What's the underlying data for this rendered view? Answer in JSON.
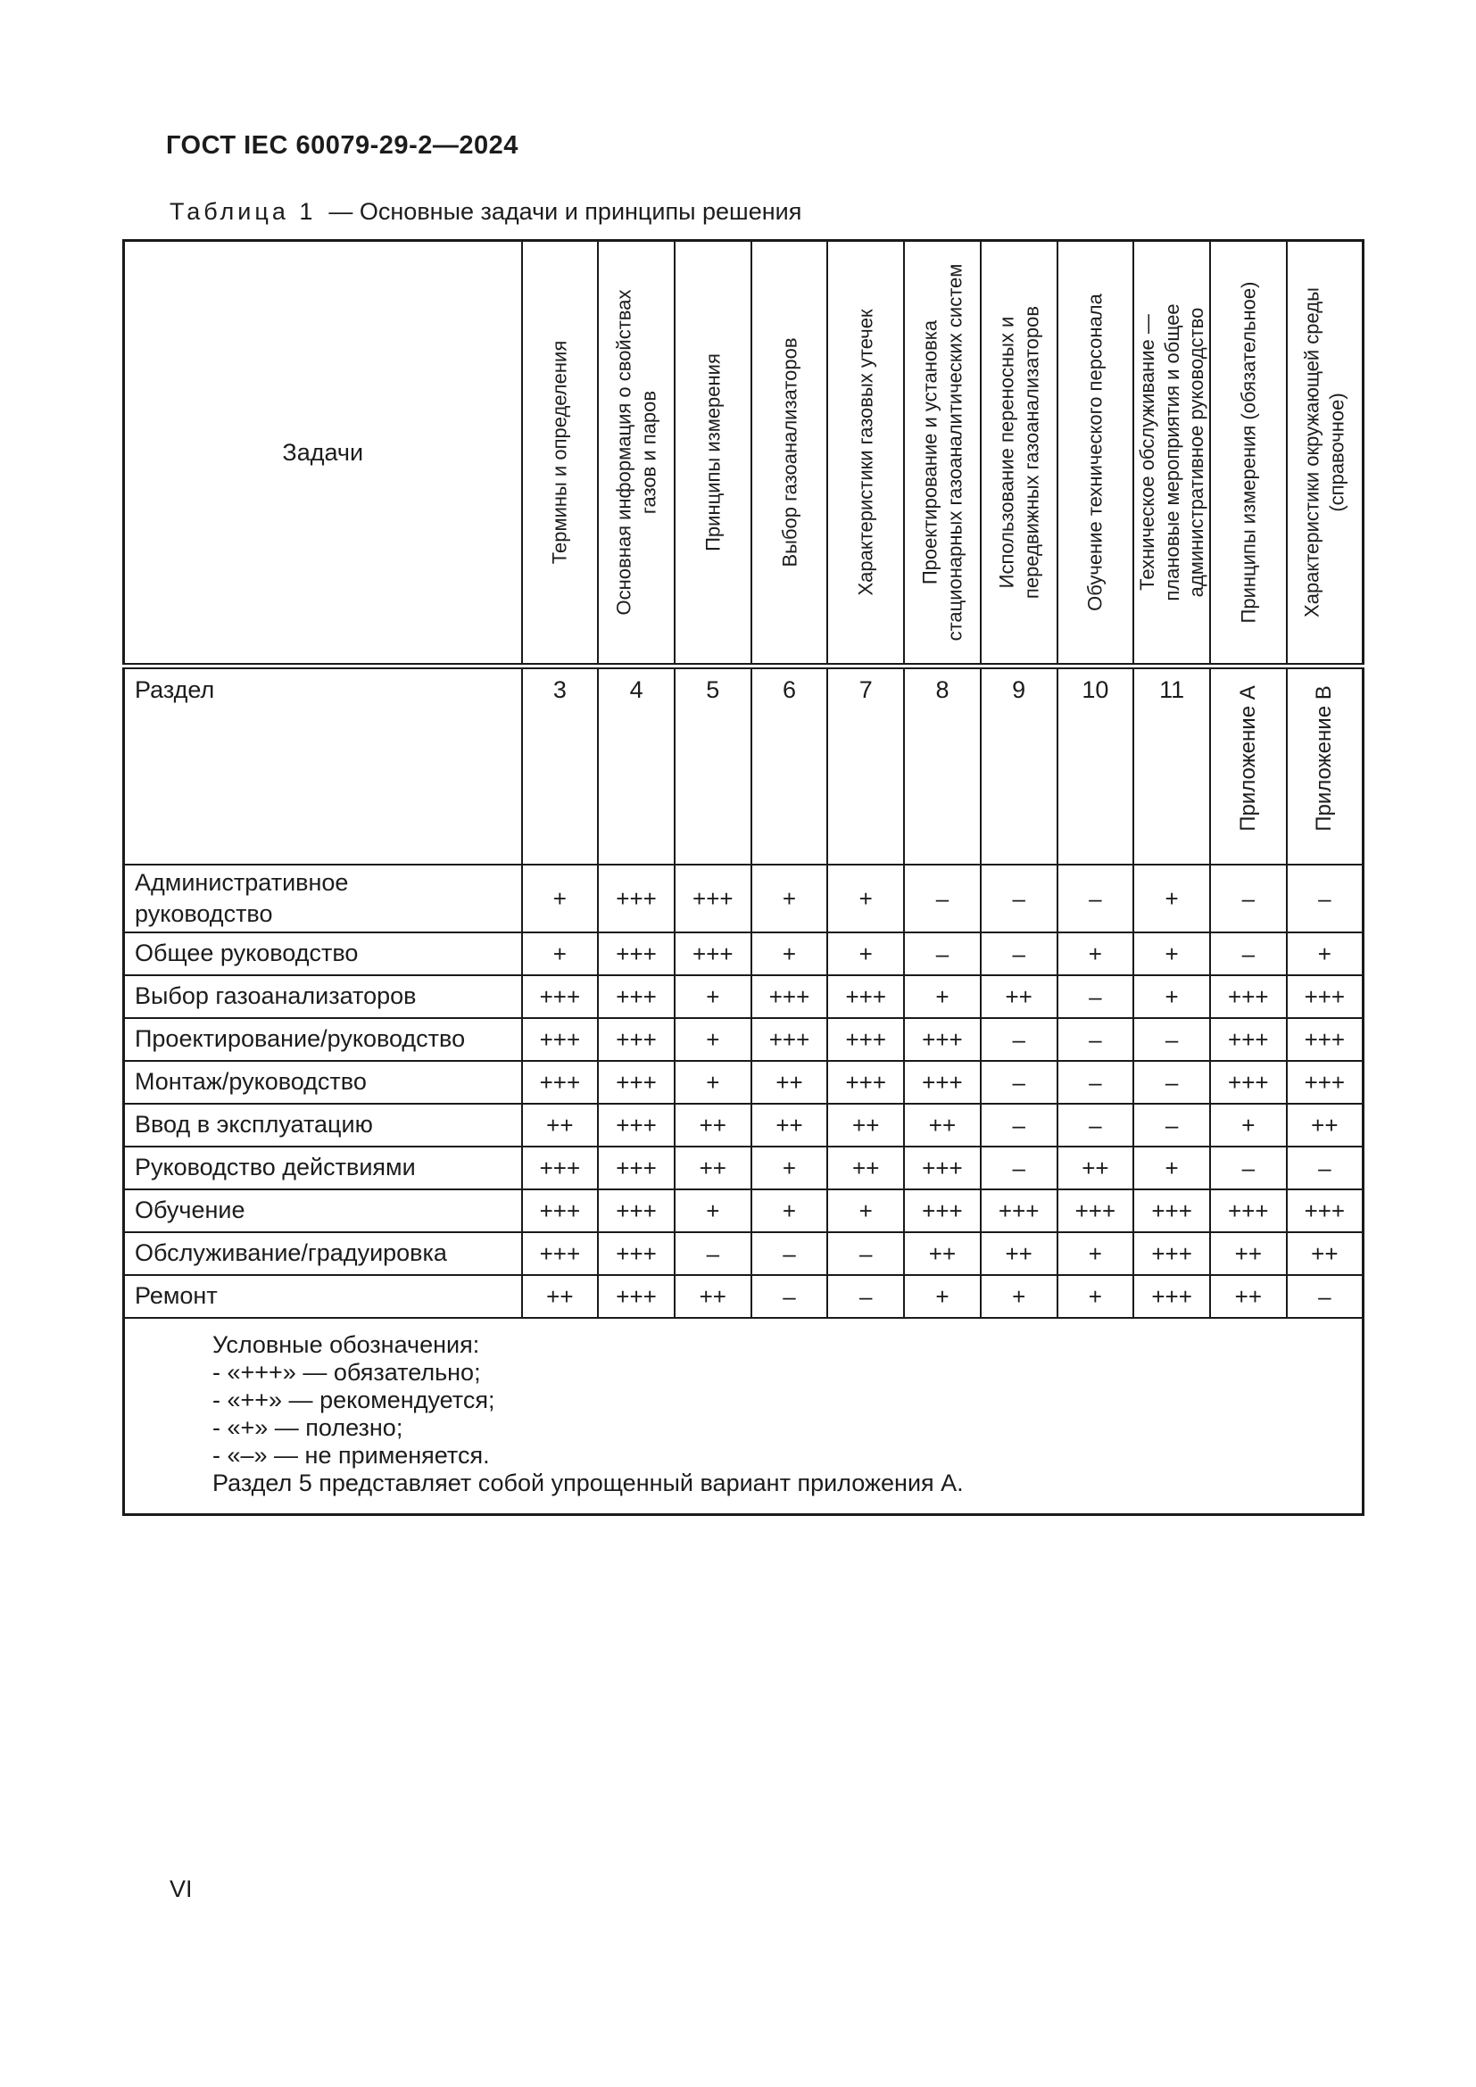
{
  "page": {
    "doc_header": "ГОСТ IEC 60079-29-2—2024",
    "page_number": "VI"
  },
  "caption": {
    "prefix": "Таблица 1",
    "rest": "— Основные задачи и принципы решения"
  },
  "table": {
    "corner_header": "Задачи",
    "section_row_label": "Раздел",
    "columns": [
      {
        "header": "Термины и определения",
        "section": "3",
        "section_rotated": false
      },
      {
        "header": "Основная информация о свойствах\nгазов и паров",
        "section": "4",
        "section_rotated": false
      },
      {
        "header": "Принципы измерения",
        "section": "5",
        "section_rotated": false
      },
      {
        "header": "Выбор газоанализаторов",
        "section": "6",
        "section_rotated": false
      },
      {
        "header": "Характеристики газовых утечек",
        "section": "7",
        "section_rotated": false
      },
      {
        "header": "Проектирование и установка\nстационарных газоаналитических систем",
        "section": "8",
        "section_rotated": false
      },
      {
        "header": "Использование переносных и\nпередвижных газоанализаторов",
        "section": "9",
        "section_rotated": false
      },
      {
        "header": "Обучение технического персонала",
        "section": "10",
        "section_rotated": false
      },
      {
        "header": "Техническое обслуживание —\nплановые мероприятия и общее\nадминистративное руководство",
        "section": "11",
        "section_rotated": false
      },
      {
        "header": "Принципы измерения (обязательное)",
        "section": "Приложение А",
        "section_rotated": true
      },
      {
        "header": "Характеристики окружающей среды\n(справочное)",
        "section": "Приложение В",
        "section_rotated": true
      }
    ],
    "rows": [
      {
        "label": "Административное\nруководство",
        "values": [
          "+",
          "+++",
          "+++",
          "+",
          "+",
          "–",
          "–",
          "–",
          "+",
          "–",
          "–"
        ]
      },
      {
        "label": "Общее руководство",
        "values": [
          "+",
          "+++",
          "+++",
          "+",
          "+",
          "–",
          "–",
          "+",
          "+",
          "–",
          "+"
        ]
      },
      {
        "label": "Выбор газоанализаторов",
        "values": [
          "+++",
          "+++",
          "+",
          "+++",
          "+++",
          "+",
          "++",
          "–",
          "+",
          "+++",
          "+++"
        ]
      },
      {
        "label": "Проектирование/руководство",
        "values": [
          "+++",
          "+++",
          "+",
          "+++",
          "+++",
          "+++",
          "–",
          "–",
          "–",
          "+++",
          "+++"
        ]
      },
      {
        "label": "Монтаж/руководство",
        "values": [
          "+++",
          "+++",
          "+",
          "++",
          "+++",
          "+++",
          "–",
          "–",
          "–",
          "+++",
          "+++"
        ]
      },
      {
        "label": "Ввод в эксплуатацию",
        "values": [
          "++",
          "+++",
          "++",
          "++",
          "++",
          "++",
          "–",
          "–",
          "–",
          "+",
          "++"
        ]
      },
      {
        "label": "Руководство действиями",
        "values": [
          "+++",
          "+++",
          "++",
          "+",
          "++",
          "+++",
          "–",
          "++",
          "+",
          "–",
          "–"
        ]
      },
      {
        "label": "Обучение",
        "values": [
          "+++",
          "+++",
          "+",
          "+",
          "+",
          "+++",
          "+++",
          "+++",
          "+++",
          "+++",
          "+++"
        ]
      },
      {
        "label": "Обслуживание/градуировка",
        "values": [
          "+++",
          "+++",
          "–",
          "–",
          "–",
          "++",
          "++",
          "+",
          "+++",
          "++",
          "++"
        ]
      },
      {
        "label": "Ремонт",
        "values": [
          "++",
          "+++",
          "++",
          "–",
          "–",
          "+",
          "+",
          "+",
          "+++",
          "++",
          "–"
        ]
      }
    ],
    "legend": {
      "title": "Условные обозначения:",
      "items": [
        "- «+++» — обязательно;",
        "- «++» — рекомендуется;",
        "- «+» — полезно;",
        "- «–» — не применяется."
      ],
      "note": "Раздел 5 представляет собой упрощенный вариант приложения А."
    }
  }
}
